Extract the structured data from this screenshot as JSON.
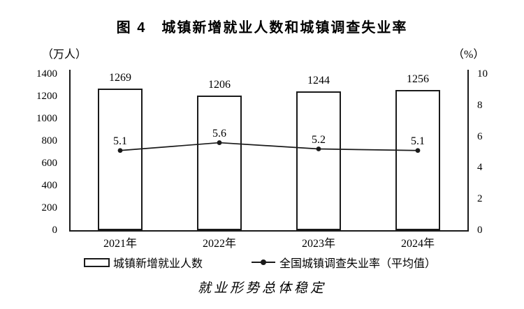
{
  "figure": {
    "title": "图 4　城镇新增就业人数和城镇调查失业率",
    "caption": "就业形势总体稳定",
    "left_axis_unit": "（万人）",
    "right_axis_unit": "（%）"
  },
  "legend": {
    "items": [
      {
        "label": "城镇新增就业人数",
        "swatch": "bar-outline"
      },
      {
        "label": "全国城镇调查失业率（平均值）",
        "swatch": "line-dot"
      }
    ]
  },
  "chart_data": {
    "type": "bar",
    "categories": [
      "2021年",
      "2022年",
      "2023年",
      "2024年"
    ],
    "series": [
      {
        "name": "城镇新增就业人数",
        "type": "bar",
        "axis": "left",
        "values": [
          1269,
          1206,
          1244,
          1256
        ]
      },
      {
        "name": "全国城镇调查失业率（平均值）",
        "type": "line",
        "axis": "right",
        "values": [
          5.1,
          5.6,
          5.2,
          5.1
        ]
      }
    ],
    "title": "图 4　城镇新增就业人数和城镇调查失业率",
    "xlabel": "",
    "left_axis": {
      "unit": "（万人）",
      "label_values": [
        0,
        200,
        400,
        600,
        800,
        1000,
        1200,
        1400
      ],
      "max": 1400
    },
    "right_axis": {
      "unit": "（%）",
      "label_values": [
        0,
        2,
        4,
        6,
        8,
        10
      ],
      "max": 10
    },
    "grid": false,
    "legend_position": "bottom",
    "colors": {
      "bar_fill": "#ffffff",
      "bar_border": "#1a1a1a",
      "line": "#1a1a1a",
      "text": "#000000",
      "background": "#ffffff"
    }
  }
}
